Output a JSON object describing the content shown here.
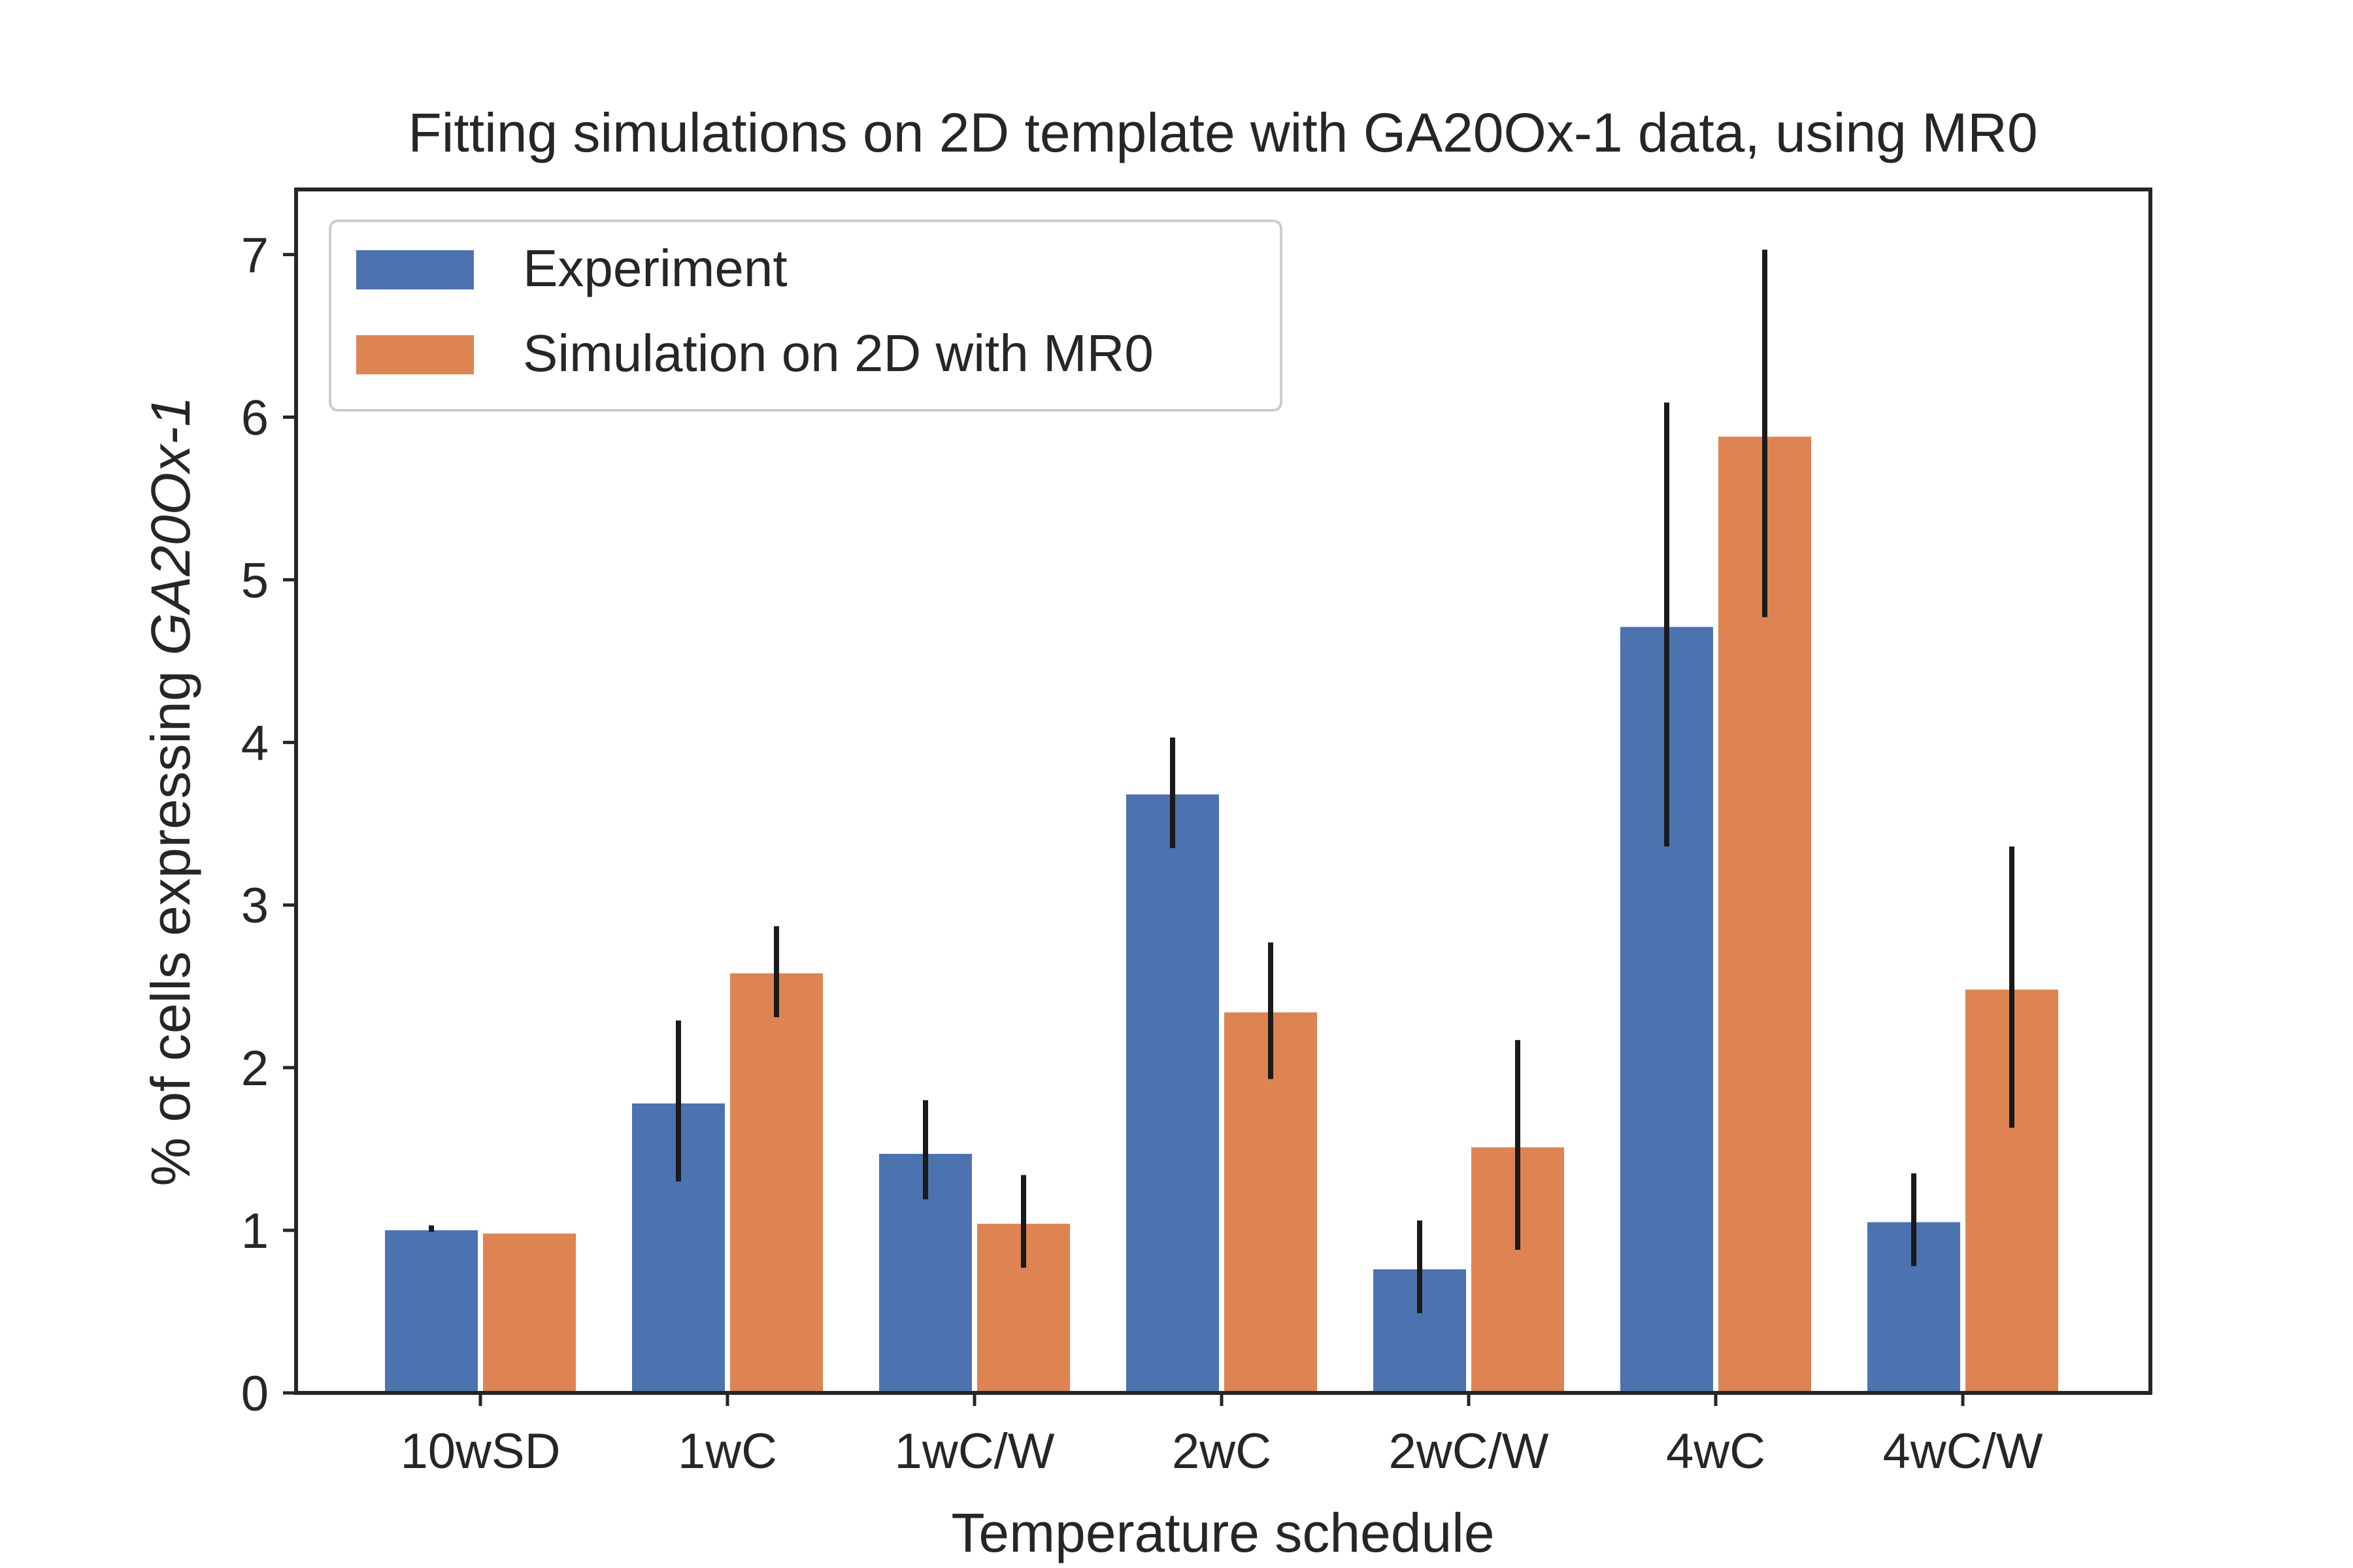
{
  "chart_data": {
    "type": "bar",
    "title": "Fitting simulations on 2D template with GA20Ox-1 data, using MR0",
    "xlabel": "Temperature schedule",
    "ylabel_prefix": "% of cells expressing ",
    "ylabel_italic": "GA20Ox-1",
    "categories": [
      "10wSD",
      "1wC",
      "1wC/W",
      "2wC",
      "2wC/W",
      "4wC",
      "4wC/W"
    ],
    "series": [
      {
        "name": "Experiment",
        "color": "#4c72b0",
        "values": [
          1.0,
          1.78,
          1.47,
          3.68,
          0.76,
          4.71,
          1.05
        ],
        "err_low": [
          0.99,
          1.3,
          1.19,
          3.35,
          0.49,
          3.36,
          0.78
        ],
        "err_high": [
          1.03,
          2.29,
          1.8,
          4.03,
          1.06,
          6.09,
          1.35
        ]
      },
      {
        "name": "Simulation on 2D with MR0",
        "color": "#dd8452",
        "values": [
          0.98,
          2.58,
          1.04,
          2.34,
          1.51,
          5.88,
          2.48
        ],
        "err_low": [
          null,
          2.31,
          0.77,
          1.93,
          0.88,
          4.77,
          1.63
        ],
        "err_high": [
          null,
          2.87,
          1.34,
          2.77,
          2.17,
          7.03,
          3.36
        ]
      }
    ],
    "ylim": [
      0,
      7.4
    ],
    "yticks": [
      0,
      1,
      2,
      3,
      4,
      5,
      6,
      7
    ],
    "grid": false,
    "legend_position": "top-left"
  }
}
